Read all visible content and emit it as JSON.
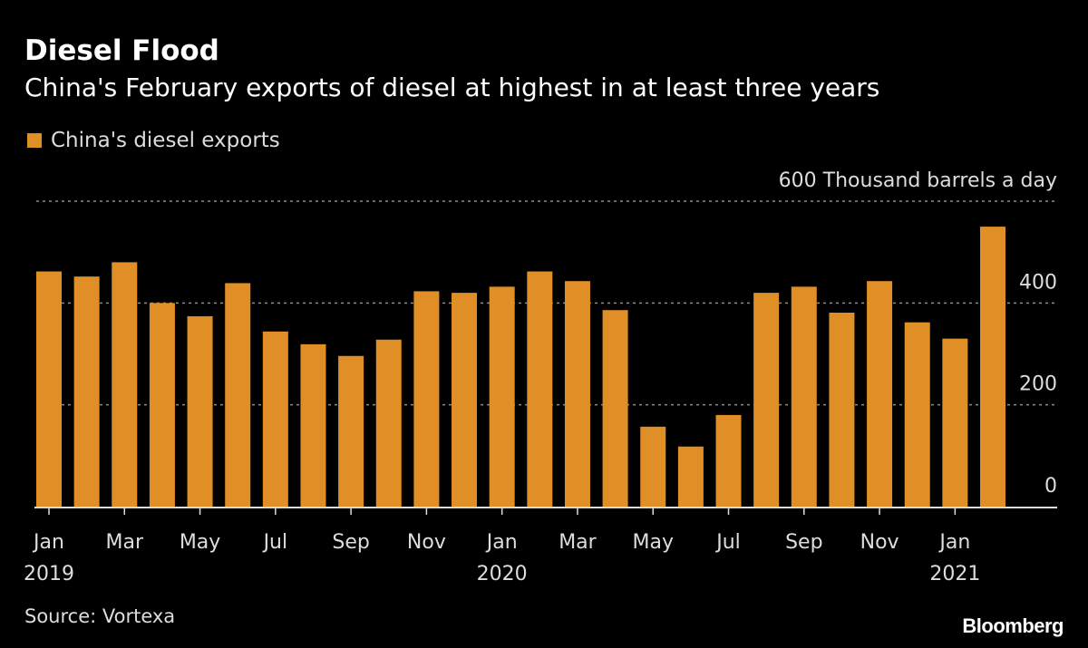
{
  "chart_data": {
    "type": "bar",
    "title": "Diesel Flood",
    "subtitle": "China's February exports of diesel at highest in at least three years",
    "ylabel": "Thousand barrels a day",
    "ylim": [
      0,
      600
    ],
    "yticks": [
      0,
      200,
      400,
      600
    ],
    "grid": true,
    "legend_position": "top-left",
    "series": [
      {
        "name": "China's diesel exports",
        "color": "#e08f26",
        "values": [
          462,
          452,
          480,
          400,
          374,
          439,
          344,
          319,
          296,
          328,
          423,
          420,
          432,
          462,
          443,
          386,
          157,
          118,
          180,
          420,
          432,
          381,
          443,
          362,
          330,
          550
        ]
      }
    ],
    "categories": [
      "Jan 2019",
      "Feb 2019",
      "Mar 2019",
      "Apr 2019",
      "May 2019",
      "Jun 2019",
      "Jul 2019",
      "Aug 2019",
      "Sep 2019",
      "Oct 2019",
      "Nov 2019",
      "Dec 2019",
      "Jan 2020",
      "Feb 2020",
      "Mar 2020",
      "Apr 2020",
      "May 2020",
      "Jun 2020",
      "Jul 2020",
      "Aug 2020",
      "Sep 2020",
      "Oct 2020",
      "Nov 2020",
      "Dec 2020",
      "Jan 2021",
      "Feb 2021"
    ],
    "xtick_labels": [
      {
        "index": 0,
        "month": "Jan",
        "year": "2019"
      },
      {
        "index": 2,
        "month": "Mar"
      },
      {
        "index": 4,
        "month": "May"
      },
      {
        "index": 6,
        "month": "Jul"
      },
      {
        "index": 8,
        "month": "Sep"
      },
      {
        "index": 10,
        "month": "Nov"
      },
      {
        "index": 12,
        "month": "Jan",
        "year": "2020"
      },
      {
        "index": 14,
        "month": "Mar"
      },
      {
        "index": 16,
        "month": "May"
      },
      {
        "index": 18,
        "month": "Jul"
      },
      {
        "index": 20,
        "month": "Sep"
      },
      {
        "index": 22,
        "month": "Nov"
      },
      {
        "index": 24,
        "month": "Jan",
        "year": "2021"
      }
    ]
  },
  "source": "Source: Vortexa",
  "brand": "Bloomberg"
}
